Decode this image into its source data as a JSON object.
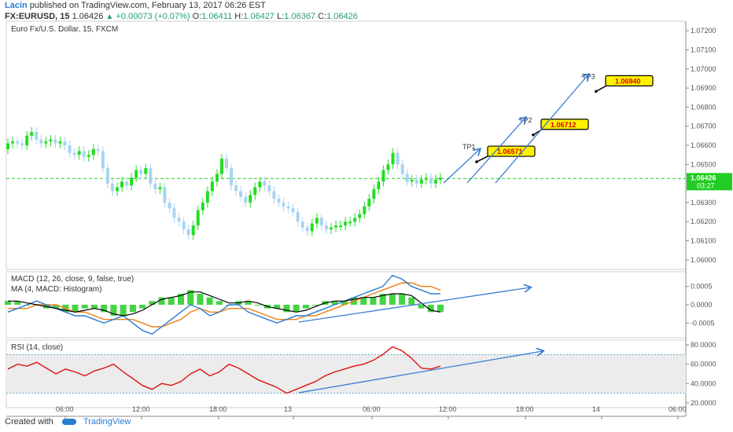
{
  "header": {
    "author": "Lacin",
    "published": "published on TradingView.com, February 13, 2017 06:26 EST",
    "symbol": "FX:EURUSD, 15",
    "last": "1.06426",
    "change": "+0.00073 (+0.07%)",
    "o_label": "O:",
    "o_val": "1.06411",
    "h_label": "H:",
    "h_val": "1.06427",
    "l_label": "L:",
    "l_val": "1.06367",
    "c_label": "C:",
    "c_val": "1.06426"
  },
  "footer": {
    "created_with": "Created with",
    "brand": "TradingView"
  },
  "colors": {
    "up": "#22dd22",
    "down": "#a8d4f2",
    "ma": "#2a7cd0",
    "signal": "#f07f1a",
    "histogram": "#22cc22",
    "rsi": "#dd1111",
    "arrow": "#3a7dd1",
    "current": "#22cc22",
    "target_fill": "#fff200"
  },
  "chart_data": [
    {
      "type": "candlestick",
      "title": "Euro Fx/U.S. Dollar, 15, FXCM",
      "ylim": [
        1.0595,
        1.0725
      ],
      "y_ticks": [
        "1.07200",
        "1.07100",
        "1.07000",
        "1.06900",
        "1.06800",
        "1.06700",
        "1.06600",
        "1.06500",
        "1.06300",
        "1.06200",
        "1.06100",
        "1.06000"
      ],
      "current_price": "1.06426",
      "countdown": "03:27",
      "x_ticks": [
        "06:00",
        "12:00",
        "18:00",
        "13",
        "06:00",
        "12:00",
        "18:00",
        "14",
        "06:00"
      ],
      "close_path": [
        1.0661,
        1.0662,
        1.0661,
        1.066,
        1.0665,
        1.0667,
        1.0663,
        1.0661,
        1.0662,
        1.0663,
        1.0661,
        1.0662,
        1.066,
        1.0656,
        1.0655,
        1.0657,
        1.0654,
        1.0655,
        1.0658,
        1.0657,
        1.0648,
        1.064,
        1.0636,
        1.0638,
        1.0641,
        1.0639,
        1.0643,
        1.0647,
        1.0645,
        1.0648,
        1.064,
        1.0637,
        1.0638,
        1.063,
        1.0627,
        1.0622,
        1.062,
        1.0616,
        1.0613,
        1.0618,
        1.0626,
        1.063,
        1.0636,
        1.0641,
        1.0645,
        1.0653,
        1.0648,
        1.0639,
        1.0636,
        1.0633,
        1.063,
        1.0634,
        1.0638,
        1.0641,
        1.0639,
        1.0636,
        1.0632,
        1.063,
        1.0628,
        1.0627,
        1.0625,
        1.062,
        1.0617,
        1.0615,
        1.0619,
        1.0622,
        1.0618,
        1.0616,
        1.0617,
        1.0618,
        1.0618,
        1.062,
        1.062,
        1.0622,
        1.0624,
        1.0628,
        1.0632,
        1.0637,
        1.0641,
        1.0647,
        1.065,
        1.0656,
        1.065,
        1.0645,
        1.0641,
        1.0642,
        1.064,
        1.0642,
        1.0643,
        1.064,
        1.0642,
        1.0643
      ],
      "targets": [
        {
          "label": "TP1",
          "value": "1.06571"
        },
        {
          "label": "TP2",
          "value": "1.06712"
        },
        {
          "label": "TP3",
          "value": "1.06940"
        }
      ]
    },
    {
      "type": "line",
      "title": "MACD (12, 26, close, 9, false, true)",
      "subtitle": "MA (4, MACD: Histogram)",
      "ylim": [
        -0.0009,
        0.0009
      ],
      "y_ticks": [
        "0.0005",
        "0.0000",
        "-0.0005"
      ],
      "macd": [
        -0.0002,
        -0.0001,
        0.0,
        0.0001,
        0.0,
        -0.0001,
        -0.0002,
        -0.0003,
        -0.0003,
        -0.0004,
        -0.0005,
        -0.0004,
        -0.0003,
        -0.0005,
        -0.0007,
        -0.0008,
        -0.0006,
        -0.0004,
        -0.0002,
        0.0,
        -0.0001,
        -0.0003,
        -0.0002,
        0.0,
        0.0,
        -0.0002,
        -0.0003,
        -0.0004,
        -0.0005,
        -0.0004,
        -0.0003,
        -0.0003,
        -0.0002,
        -0.0001,
        0.0,
        0.0001,
        0.0002,
        0.0003,
        0.0004,
        0.0005,
        0.0008,
        0.0007,
        0.0005,
        0.0004,
        0.0003,
        0.0003
      ],
      "signal": [
        -0.0001,
        -0.0001,
        -0.0001,
        0.0,
        0.0,
        0.0,
        -0.0001,
        -0.0002,
        -0.0002,
        -0.0003,
        -0.0004,
        -0.0004,
        -0.0004,
        -0.0004,
        -0.0005,
        -0.0006,
        -0.0006,
        -0.0005,
        -0.0004,
        -0.0002,
        -0.0001,
        -0.0002,
        -0.0002,
        -0.0001,
        -0.0001,
        -0.0001,
        -0.0002,
        -0.0003,
        -0.0004,
        -0.0004,
        -0.0004,
        -0.0003,
        -0.0003,
        -0.0002,
        -0.0001,
        0.0,
        0.0001,
        0.0002,
        0.0003,
        0.0004,
        0.0005,
        0.0006,
        0.0006,
        0.0005,
        0.0005,
        0.0004
      ],
      "histogram": [
        0.0001,
        0.0001,
        0.0,
        0.0,
        -0.0001,
        -0.0001,
        -0.0002,
        -0.0002,
        -0.0001,
        -0.0001,
        -0.0002,
        -0.0003,
        -0.0003,
        -0.0002,
        -0.0001,
        0.0001,
        0.0002,
        0.0002,
        0.0003,
        0.0004,
        0.0003,
        0.0002,
        0.0001,
        0.0,
        0.0001,
        0.0001,
        0.0,
        -0.0001,
        -0.0001,
        -0.0002,
        -0.0002,
        -0.0001,
        0.0,
        0.0001,
        0.0001,
        0.0001,
        0.0002,
        0.0002,
        0.0002,
        0.0003,
        0.0003,
        0.0003,
        0.0002,
        -0.0001,
        -0.0002,
        -0.0002
      ]
    },
    {
      "type": "line",
      "title": "RSI (14, close)",
      "ylim": [
        15,
        85
      ],
      "y_ticks": [
        "80.0000",
        "60.0000",
        "40.0000",
        "20.0000"
      ],
      "band": [
        30,
        70
      ],
      "values": [
        55,
        60,
        58,
        62,
        56,
        50,
        55,
        52,
        48,
        53,
        56,
        60,
        52,
        45,
        38,
        34,
        40,
        38,
        42,
        50,
        55,
        48,
        52,
        60,
        56,
        50,
        44,
        40,
        36,
        30,
        34,
        38,
        42,
        48,
        52,
        55,
        58,
        60,
        64,
        70,
        78,
        74,
        66,
        56,
        55,
        58
      ]
    }
  ]
}
